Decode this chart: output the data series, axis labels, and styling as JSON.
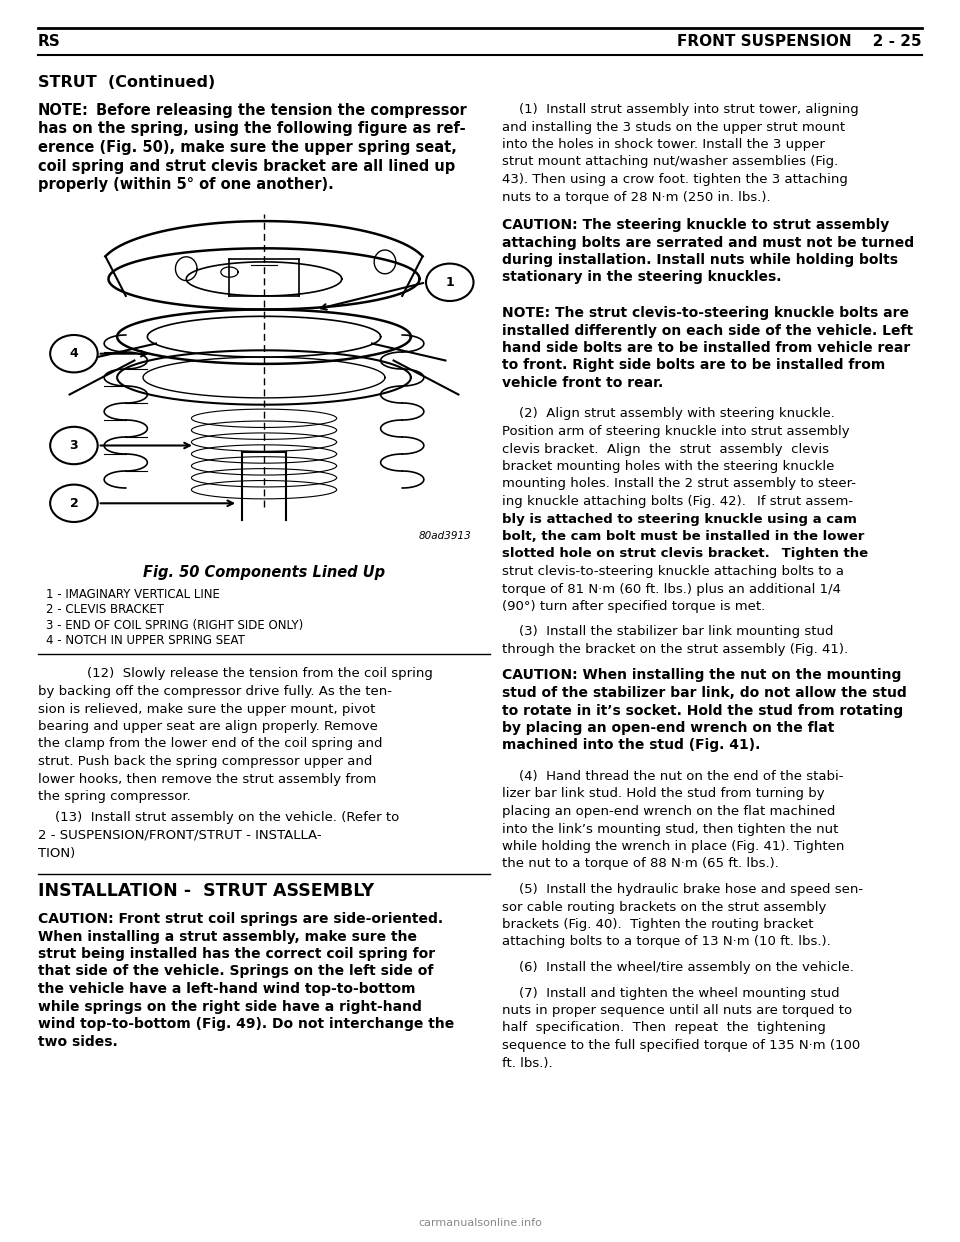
{
  "header_left": "RS",
  "header_right": "FRONT SUSPENSION    2 - 25",
  "section_title": "STRUT  (Continued)",
  "note_lines": [
    "NOTE: Before releasing the tension the compressor",
    "has on the spring, using the following figure as ref-",
    "erence (Fig. 50), make sure the upper spring seat,",
    "coil spring and strut clevis bracket are all lined up",
    "properly (within 5° of one another)."
  ],
  "fig_caption": "Fig. 50 Components Lined Up",
  "fig_ref": "80ad3913",
  "legend_items": [
    "1 - IMAGINARY VERTICAL LINE",
    "2 - CLEVIS BRACKET",
    "3 - END OF COIL SPRING (RIGHT SIDE ONLY)",
    "4 - NOTCH IN UPPER SPRING SEAT"
  ],
  "para12_first": "    (12)  Slowly release the tension from the coil spring",
  "para12_rest": [
    "by backing off the compressor drive fully. As the ten-",
    "sion is relieved, make sure the upper mount, pivot",
    "bearing and upper seat are align properly. Remove",
    "the clamp from the lower end of the coil spring and",
    "strut. Push back the spring compressor upper and",
    "lower hooks, then remove the strut assembly from",
    "the spring compressor."
  ],
  "para13_lines": [
    "    (13)  Install strut assembly on the vehicle. (Refer to",
    "2 - SUSPENSION/FRONT/STRUT - INSTALLA-",
    "TION)"
  ],
  "installation_title": "INSTALLATION -  STRUT ASSEMBLY",
  "caution1_lines": [
    "CAUTION: Front strut coil springs are side-oriented.",
    "When installing a strut assembly, make sure the",
    "strut being installed has the correct coil spring for",
    "that side of the vehicle. Springs on the left side of",
    "the vehicle have a left-hand wind top-to-bottom",
    "while springs on the right side have a right-hand",
    "wind top-to-bottom (Fig. 49). Do not interchange the",
    "two sides."
  ],
  "right_para1_lines": [
    "    (1)  Install strut assembly into strut tower, aligning",
    "and installing the 3 studs on the upper strut mount",
    "into the holes in shock tower. Install the 3 upper",
    "strut mount attaching nut/washer assemblies (Fig.",
    "43). Then using a crow foot. tighten the 3 attaching",
    "nuts to a torque of 28 N·m (250 in. lbs.)."
  ],
  "caution2_lines": [
    "CAUTION: The steering knuckle to strut assembly",
    "attaching bolts are serrated and must not be turned",
    "during installation. Install nuts while holding bolts",
    "stationary in the steering knuckles."
  ],
  "note2_lines": [
    "NOTE: The strut clevis-to-steering knuckle bolts are",
    "installed differently on each side of the vehicle. Left",
    "hand side bolts are to be installed from vehicle rear",
    "to front. Right side bolts are to be installed from",
    "vehicle front to rear."
  ],
  "right_para2_normal": "    (2)  Align strut assembly with steering knuckle. Position arm of steering knuckle into strut assembly clevis bracket. Align the strut assembly clevis bracket mounting holes with the steering knuckle mounting holes. Install the 2 strut assembly to steer-ing knuckle attaching bolts (Fig. 42). ",
  "right_para2_bold": "If strut assem-bly is attached to steering knuckle using a cam bolt, the cam bolt must be installed in the lower slotted hole on strut clevis bracket.",
  "right_para2_after": " Tighten the strut clevis-to-steering knuckle attaching bolts to a torque of 81 N·m (60 ft. lbs.) plus an additional 1/4 (90°) turn after specified torque is met.",
  "right_para2_lines": [
    "    (2)  Align strut assembly with steering knuckle.",
    "Position arm of steering knuckle into strut assembly",
    "clevis bracket.  Align  the  strut  assembly  clevis",
    "bracket mounting holes with the steering knuckle",
    "mounting holes. Install the 2 strut assembly to steer-",
    "ing knuckle attaching bolts (Fig. 42)."
  ],
  "right_para2b_lines": [
    "bly is attached to steering knuckle using a cam",
    "bolt, the cam bolt must be installed in the lower",
    "slotted hole on strut clevis bracket."
  ],
  "right_para2c_lines": [
    " Tighten the",
    "strut clevis-to-steering knuckle attaching bolts to a",
    "torque of 81 N·m (60 ft. lbs.) plus an additional 1/4",
    "(90°) turn after specified torque is met."
  ],
  "right_para3_lines": [
    "    (3)  Install the stabilizer bar link mounting stud",
    "through the bracket on the strut assembly (Fig. 41)."
  ],
  "caution3_lines": [
    "CAUTION: When installing the nut on the mounting",
    "stud of the stabilizer bar link, do not allow the stud",
    "to rotate in it’s socket. Hold the stud from rotating",
    "by placing an open-end wrench on the flat",
    "machined into the stud (Fig. 41)."
  ],
  "right_para4_lines": [
    "    (4)  Hand thread the nut on the end of the stabi-",
    "lizer bar link stud. Hold the stud from turning by",
    "placing an open-end wrench on the flat machined",
    "into the link’s mounting stud, then tighten the nut",
    "while holding the wrench in place (Fig. 41). Tighten",
    "the nut to a torque of 88 N·m (65 ft. lbs.)."
  ],
  "right_para5_lines": [
    "    (5)  Install the hydraulic brake hose and speed sen-",
    "sor cable routing brackets on the strut assembly",
    "brackets (Fig. 40).  Tighten the routing bracket",
    "attaching bolts to a torque of 13 N·m (10 ft. lbs.)."
  ],
  "right_para6": "    (6)  Install the wheel/tire assembly on the vehicle.",
  "right_para7_lines": [
    "    (7)  Install and tighten the wheel mounting stud",
    "nuts in proper sequence until all nuts are torqued to",
    "half  specification.  Then  repeat  the  tightening",
    "sequence to the full specified torque of 135 N·m (100",
    "ft. lbs.)."
  ],
  "watermark": "carmanualsonline.info"
}
